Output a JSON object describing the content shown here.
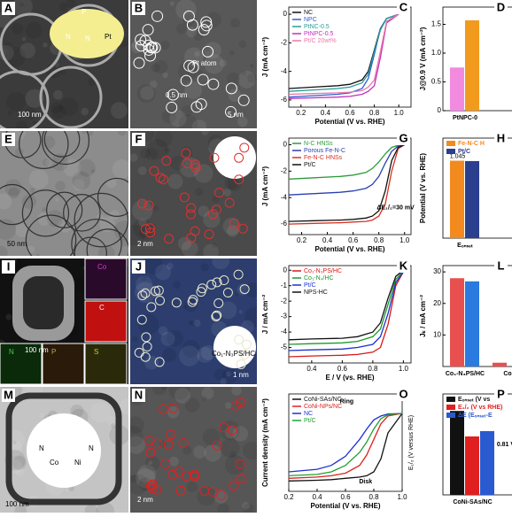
{
  "panels": [
    {
      "label": "A",
      "texts": [
        "P",
        "N",
        "N",
        "Pt",
        "100 nm"
      ]
    },
    {
      "label": "B",
      "texts": [
        "Pt atom",
        "0.5 nm",
        "5 nm"
      ]
    },
    {
      "label": "E",
      "texts": [
        "50 nm"
      ]
    },
    {
      "label": "F",
      "texts": [
        "2 nm"
      ]
    },
    {
      "label": "I",
      "texts": [
        "100 nm",
        "Co",
        "C",
        "N",
        "P",
        "S"
      ]
    },
    {
      "label": "J",
      "texts": [
        "Co₁-N₃PS/HC",
        "1 nm"
      ]
    },
    {
      "label": "M",
      "texts": [
        "N",
        "N",
        "Co",
        "Ni",
        "100 nm"
      ]
    },
    {
      "label": "N",
      "texts": [
        "2 nm"
      ]
    }
  ],
  "chart_data": [
    {
      "type": "line",
      "label": "C",
      "xlabel": "Potential (V vs. RHE)",
      "ylabel": "J (mA cm⁻²)",
      "xlim": [
        0.1,
        1.1
      ],
      "xticks": [
        0.2,
        0.4,
        0.6,
        0.8,
        {
          "value": 1,
          "label": "1.0"
        }
      ],
      "ylim": [
        -6.5,
        0.5
      ],
      "yticks": [
        -6,
        -4,
        -2,
        0
      ],
      "series": [
        {
          "name": "NC",
          "color": "#111111",
          "x": [
            0.1,
            0.3,
            0.5,
            0.6,
            0.7,
            0.75,
            0.8,
            0.85,
            0.9,
            1.0
          ],
          "values": [
            -5.2,
            -5.1,
            -5.0,
            -4.9,
            -4.6,
            -4.0,
            -2.5,
            -1.0,
            -0.3,
            0
          ]
        },
        {
          "name": "NPC",
          "color": "#2f5fd0",
          "x": [
            0.1,
            0.3,
            0.5,
            0.6,
            0.7,
            0.75,
            0.8,
            0.85,
            0.9,
            1.0
          ],
          "values": [
            -5.8,
            -5.7,
            -5.6,
            -5.5,
            -5.2,
            -4.5,
            -2.8,
            -1.0,
            -0.3,
            0
          ]
        },
        {
          "name": "PtNC-0.5",
          "color": "#2a9a9a",
          "x": [
            0.1,
            0.3,
            0.5,
            0.6,
            0.7,
            0.75,
            0.8,
            0.85,
            0.9,
            1.0
          ],
          "values": [
            -5.4,
            -5.3,
            -5.2,
            -5.1,
            -4.8,
            -4.2,
            -2.6,
            -1.1,
            -0.3,
            0
          ]
        },
        {
          "name": "PtNPC-0.5",
          "color": "#c030c0",
          "x": [
            0.1,
            0.3,
            0.5,
            0.6,
            0.7,
            0.75,
            0.8,
            0.85,
            0.9,
            1.0
          ],
          "values": [
            -5.9,
            -5.85,
            -5.8,
            -5.75,
            -5.6,
            -5.4,
            -5.0,
            -3.0,
            -0.6,
            0
          ]
        },
        {
          "name": "Pt/C 20wt%",
          "color": "#e87aa8",
          "x": [
            0.1,
            0.3,
            0.5,
            0.6,
            0.7,
            0.75,
            0.8,
            0.85,
            0.9,
            1.0
          ],
          "values": [
            -5.6,
            -5.55,
            -5.5,
            -5.45,
            -5.35,
            -5.1,
            -4.6,
            -2.6,
            -0.5,
            0
          ]
        }
      ]
    },
    {
      "type": "bar",
      "label": "D",
      "ylabel": "J@0.9 V (mA cm⁻²)",
      "ylim": [
        0,
        1.8
      ],
      "yticks": [
        0,
        0.5,
        {
          "value": 1,
          "label": "1.0"
        },
        1.5
      ],
      "categories": [
        "PtNPC-0"
      ],
      "series": [
        {
          "color": "#f28ae0",
          "values": [
            0.75
          ]
        },
        {
          "color": "#f29a1e",
          "values": [
            1.57
          ]
        }
      ]
    },
    {
      "type": "line",
      "label": "G",
      "xlabel": "Potential (V vs. RHE)",
      "ylabel": "J (mA cm⁻²)",
      "annotations": [
        "ΔE₁/₂=30 mV"
      ],
      "xlim": [
        0.1,
        1.05
      ],
      "xticks": [
        0.2,
        0.4,
        0.6,
        0.8,
        {
          "value": 1,
          "label": "1.0"
        }
      ],
      "ylim": [
        -6.8,
        0.5
      ],
      "yticks": [
        -6,
        -4,
        -2,
        0
      ],
      "series": [
        {
          "name": "N-C HNSs",
          "color": "#2e9a3a",
          "x": [
            0.1,
            0.3,
            0.5,
            0.6,
            0.7,
            0.75,
            0.8,
            0.85,
            0.9,
            0.95,
            1.0
          ],
          "values": [
            -2.6,
            -2.5,
            -2.4,
            -2.3,
            -2.1,
            -1.8,
            -1.3,
            -0.7,
            -0.2,
            -0.05,
            0
          ]
        },
        {
          "name": "Porous Fe-N-C",
          "color": "#2a3fb0",
          "x": [
            0.1,
            0.3,
            0.5,
            0.6,
            0.7,
            0.75,
            0.8,
            0.85,
            0.9,
            0.95,
            1.0
          ],
          "values": [
            -3.8,
            -3.7,
            -3.6,
            -3.5,
            -3.3,
            -3.0,
            -2.4,
            -1.4,
            -0.5,
            -0.1,
            0
          ]
        },
        {
          "name": "Fe-N-C HNSs",
          "color": "#d83020",
          "x": [
            0.1,
            0.3,
            0.5,
            0.6,
            0.7,
            0.75,
            0.8,
            0.85,
            0.9,
            0.95,
            1.0
          ],
          "values": [
            -6.0,
            -5.95,
            -5.9,
            -5.85,
            -5.8,
            -5.7,
            -5.4,
            -4.5,
            -2.0,
            -0.3,
            0
          ]
        },
        {
          "name": "Pt/C",
          "color": "#111111",
          "x": [
            0.1,
            0.3,
            0.5,
            0.6,
            0.7,
            0.75,
            0.8,
            0.85,
            0.9,
            0.95,
            1.0
          ],
          "values": [
            -5.8,
            -5.75,
            -5.7,
            -5.65,
            -5.55,
            -5.4,
            -5.0,
            -3.5,
            -1.2,
            -0.2,
            0
          ]
        }
      ]
    },
    {
      "type": "bar",
      "label": "H",
      "ylabel": "Potential (V vs. RHE)",
      "ylim": [
        0,
        1.35
      ],
      "categories": [
        "Eₒₙₛₑₜ"
      ],
      "series": [
        {
          "name": "Fe-N-C H",
          "color": "#f28a1e",
          "values": [
            1.045
          ],
          "value_labels": [
            "1.045"
          ]
        },
        {
          "name": "Pt/C",
          "color": "#2b3f8f",
          "values": [
            1.04
          ]
        }
      ]
    },
    {
      "type": "line",
      "label": "K",
      "xlabel": "E / V (vs. RHE)",
      "ylabel": "J / mA cm⁻²",
      "xlim": [
        0.25,
        1.05
      ],
      "xticks": [
        0.4,
        0.6,
        0.8,
        {
          "value": 1,
          "label": "1.0"
        }
      ],
      "ylim": [
        -6,
        0.3
      ],
      "yticks": [
        -5,
        -4,
        -3,
        -2,
        -1,
        0
      ],
      "series": [
        {
          "name": "Co₁-N₃PS/HC",
          "color": "#d81818",
          "x": [
            0.25,
            0.4,
            0.6,
            0.7,
            0.8,
            0.85,
            0.9,
            0.95,
            1.0
          ],
          "values": [
            -5.6,
            -5.55,
            -5.5,
            -5.45,
            -5.3,
            -5.0,
            -3.5,
            -1.0,
            -0.1
          ]
        },
        {
          "name": "Co₁-N₄/HC",
          "color": "#1a9a2a",
          "x": [
            0.25,
            0.4,
            0.6,
            0.7,
            0.8,
            0.85,
            0.9,
            0.95,
            1.0
          ],
          "values": [
            -4.8,
            -4.75,
            -4.7,
            -4.6,
            -4.3,
            -3.8,
            -2.2,
            -0.6,
            -0.05
          ]
        },
        {
          "name": "Pt/C",
          "color": "#1a30d0",
          "x": [
            0.25,
            0.4,
            0.6,
            0.7,
            0.8,
            0.85,
            0.9,
            0.95,
            1.0
          ],
          "values": [
            -5.2,
            -5.15,
            -5.1,
            -5.0,
            -4.8,
            -4.3,
            -2.8,
            -0.8,
            -0.1
          ]
        },
        {
          "name": "NPS-HC",
          "color": "#111111",
          "x": [
            0.25,
            0.4,
            0.6,
            0.7,
            0.8,
            0.85,
            0.9,
            0.95,
            1.0
          ],
          "values": [
            -4.5,
            -4.45,
            -4.4,
            -4.3,
            -4.0,
            -3.4,
            -1.8,
            -0.4,
            0
          ]
        }
      ]
    },
    {
      "type": "bar",
      "label": "L",
      "ylabel": "Jₖ / mA cm⁻²",
      "ylim": [
        0,
        32
      ],
      "yticks": [
        10,
        20,
        30
      ],
      "categories": [
        "Co₁-N₃PS/HC",
        "Co"
      ],
      "series": [
        {
          "color": "#e85050",
          "values": [
            28,
            1.2
          ]
        },
        {
          "color": "#2a7ae0",
          "values": [
            27,
            null
          ]
        }
      ]
    },
    {
      "type": "line",
      "label": "O",
      "xlabel": "Potential (V vs. RHE)",
      "ylabel": "Current density (mA cm⁻²)",
      "y2label": "E₁/₂ (V versus RHE)",
      "annotations": [
        "Ring",
        "Disk"
      ],
      "xlim": [
        0.2,
        1.0
      ],
      "xticks": [
        0.2,
        0.4,
        0.6,
        0.8,
        {
          "value": 1,
          "label": "1.0"
        }
      ],
      "ylim": [
        -6,
        1.5
      ],
      "series": [
        {
          "name": "CoNi-SAs/NC",
          "color": "#111111",
          "x": [
            0.2,
            0.4,
            0.5,
            0.6,
            0.7,
            0.75,
            0.8,
            0.85,
            0.9,
            1.0
          ],
          "values": [
            -5.2,
            -5.15,
            -5.1,
            -5.0,
            -4.9,
            -4.8,
            -4.5,
            -3.5,
            -1.5,
            0
          ]
        },
        {
          "name": "CoNi-NPs/NC",
          "color": "#e02020",
          "x": [
            0.2,
            0.4,
            0.5,
            0.6,
            0.7,
            0.75,
            0.8,
            0.85,
            0.9,
            1.0
          ],
          "values": [
            -5.0,
            -4.9,
            -4.8,
            -4.6,
            -4.0,
            -3.2,
            -2.0,
            -0.8,
            -0.2,
            0
          ]
        },
        {
          "name": "NC",
          "color": "#2030d0",
          "x": [
            0.2,
            0.4,
            0.5,
            0.6,
            0.7,
            0.75,
            0.8,
            0.85,
            0.9,
            1.0
          ],
          "values": [
            -4.5,
            -4.3,
            -4.0,
            -3.3,
            -2.0,
            -1.2,
            -0.5,
            -0.2,
            -0.05,
            0
          ]
        },
        {
          "name": "Pt/C",
          "color": "#20a030",
          "x": [
            0.2,
            0.4,
            0.5,
            0.6,
            0.7,
            0.75,
            0.8,
            0.85,
            0.9,
            1.0
          ],
          "values": [
            -4.8,
            -4.7,
            -4.5,
            -4.0,
            -3.0,
            -2.2,
            -1.2,
            -0.4,
            -0.1,
            0
          ]
        }
      ]
    },
    {
      "type": "bar",
      "label": "P",
      "ylim": [
        0,
        1.9
      ],
      "annotations": [
        "0.81 V"
      ],
      "categories": [
        "CoNi-SAs/NC"
      ],
      "series": [
        {
          "name": "Eₒₙₛₑₜ (V vs",
          "color": "#111111",
          "values": [
            1.58
          ]
        },
        {
          "name": "E₁/₂ (V vs RHE)",
          "color": "#e02020",
          "values": [
            1.1
          ]
        },
        {
          "name": "ΔE (Eₒₙₛₑₜ-E",
          "color": "#2a5ad0",
          "values": [
            1.2
          ]
        }
      ]
    }
  ]
}
